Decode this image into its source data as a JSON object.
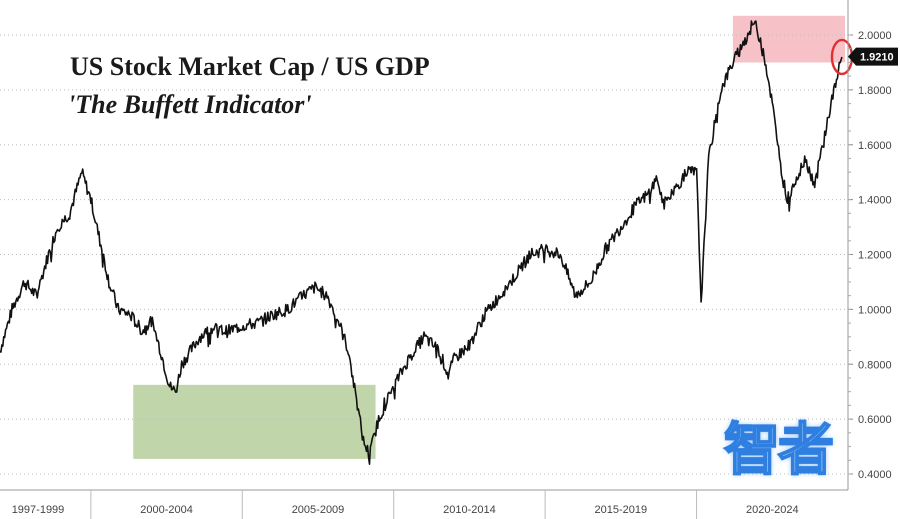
{
  "chart_data": {
    "type": "line",
    "title": "US Stock Market Cap / US GDP",
    "subtitle": "'The Buffett Indicator'",
    "xlabel": "",
    "ylabel": "",
    "x_tick_labels": [
      "1997-1999",
      "2000-2004",
      "2005-2009",
      "2010-2014",
      "2015-2019",
      "2020-2024"
    ],
    "x_range": [
      1997.0,
      2025.0
    ],
    "ylim": [
      0.35,
      2.1
    ],
    "y_ticks": [
      0.4,
      0.6,
      0.8,
      1.0,
      1.2,
      1.4,
      1.6,
      1.8,
      2.0
    ],
    "y_tick_labels": [
      "0.4000",
      "0.6000",
      "0.8000",
      "1.0000",
      "1.2000",
      "1.4000",
      "1.6000",
      "1.8000",
      "2.0000"
    ],
    "grid": "horizontal dotted",
    "last_value_label": "1.9210",
    "series": [
      {
        "name": "",
        "color": "#111111",
        "x": [
          1997.0,
          1997.4,
          1997.8,
          1998.2,
          1998.6,
          1998.9,
          1999.3,
          1999.7,
          2000.0,
          2000.3,
          2000.6,
          2000.9,
          2001.3,
          2001.7,
          2002.0,
          2002.3,
          2002.6,
          2002.8,
          2003.0,
          2003.3,
          2003.6,
          2004.0,
          2004.5,
          2005.0,
          2005.5,
          2006.0,
          2006.5,
          2007.0,
          2007.4,
          2007.8,
          2008.2,
          2008.5,
          2008.8,
          2009.0,
          2009.2,
          2009.5,
          2010.0,
          2010.5,
          2011.0,
          2011.5,
          2011.8,
          2012.0,
          2012.5,
          2013.0,
          2013.5,
          2014.0,
          2014.5,
          2015.0,
          2015.5,
          2016.0,
          2016.5,
          2017.0,
          2017.5,
          2018.0,
          2018.4,
          2018.7,
          2018.9,
          2019.3,
          2019.7,
          2020.0,
          2020.15,
          2020.4,
          2020.8,
          2021.2,
          2021.6,
          2021.9,
          2022.2,
          2022.5,
          2022.8,
          2023.0,
          2023.3,
          2023.6,
          2023.9,
          2024.2,
          2024.5,
          2024.8
        ],
        "values": [
          0.85,
          1.0,
          1.1,
          1.05,
          1.2,
          1.3,
          1.35,
          1.5,
          1.4,
          1.25,
          1.1,
          1.0,
          0.98,
          0.92,
          0.96,
          0.85,
          0.72,
          0.7,
          0.8,
          0.85,
          0.9,
          0.93,
          0.92,
          0.94,
          0.95,
          0.98,
          1.0,
          1.05,
          1.08,
          1.05,
          0.95,
          0.85,
          0.65,
          0.52,
          0.47,
          0.6,
          0.72,
          0.82,
          0.9,
          0.85,
          0.76,
          0.82,
          0.87,
          0.98,
          1.05,
          1.12,
          1.2,
          1.22,
          1.2,
          1.05,
          1.1,
          1.22,
          1.3,
          1.38,
          1.42,
          1.48,
          1.38,
          1.44,
          1.5,
          1.5,
          1.03,
          1.55,
          1.8,
          1.9,
          1.98,
          2.05,
          1.95,
          1.75,
          1.5,
          1.4,
          1.48,
          1.55,
          1.45,
          1.62,
          1.78,
          1.92
        ]
      }
    ],
    "highlights": [
      {
        "x": [
          2001.4,
          2009.4
        ],
        "y": [
          0.455,
          0.725
        ],
        "color": "#b5cf9b"
      },
      {
        "x": [
          2021.2,
          2024.9
        ],
        "y": [
          1.9,
          2.07
        ],
        "color": "#f4b7bd"
      }
    ],
    "circle_marker": {
      "x": 2024.8,
      "y": 1.92,
      "color": "#e03030"
    }
  },
  "watermark": "智者"
}
